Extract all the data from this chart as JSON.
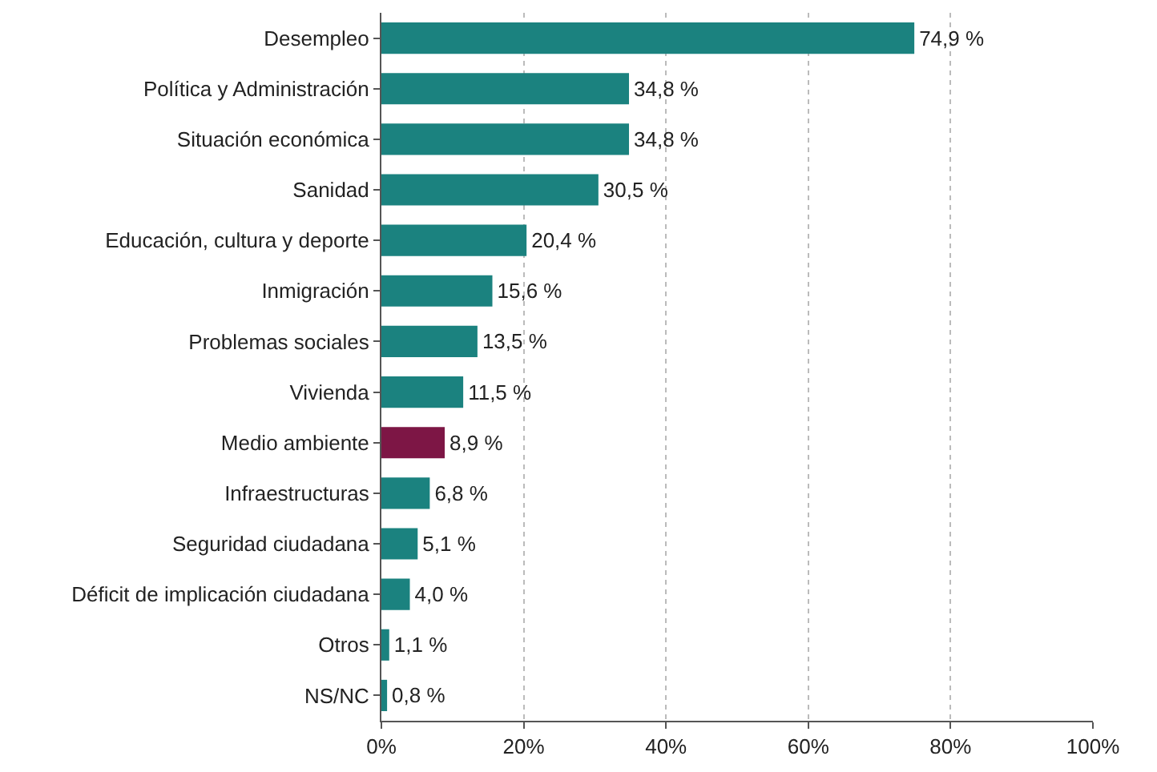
{
  "chart_data": {
    "type": "bar",
    "orientation": "horizontal",
    "categories": [
      "Desempleo",
      "Política y Administración",
      "Situación económica",
      "Sanidad",
      "Educación, cultura y deporte",
      "Inmigración",
      "Problemas sociales",
      "Vivienda",
      "Medio ambiente",
      "Infraestructuras",
      "Seguridad ciudadana",
      "Déficit de implicación ciudadana",
      "Otros",
      "NS/NC"
    ],
    "values": [
      74.9,
      34.8,
      34.8,
      30.5,
      20.4,
      15.6,
      13.5,
      11.5,
      8.9,
      6.8,
      5.1,
      4.0,
      1.1,
      0.8
    ],
    "value_labels": [
      "74,9 %",
      "34,8 %",
      "34,8 %",
      "30,5 %",
      "20,4 %",
      "15,6 %",
      "13,5 %",
      "11,5 %",
      "8,9 %",
      "6,8 %",
      "5,1 %",
      "4,0 %",
      "1,1 %",
      "0,8 %"
    ],
    "colors": [
      "#1b827f",
      "#1b827f",
      "#1b827f",
      "#1b827f",
      "#1b827f",
      "#1b827f",
      "#1b827f",
      "#1b827f",
      "#7d1645",
      "#1b827f",
      "#1b827f",
      "#1b827f",
      "#1b827f",
      "#1b827f"
    ],
    "xlim": [
      0,
      100
    ],
    "xticks": [
      {
        "value": 0,
        "label": "0%"
      },
      {
        "value": 20,
        "label": "20%"
      },
      {
        "value": 40,
        "label": "40%"
      },
      {
        "value": 60,
        "label": "60%"
      },
      {
        "value": 80,
        "label": "80%"
      },
      {
        "value": 100,
        "label": "100%"
      }
    ],
    "grid": "x"
  }
}
